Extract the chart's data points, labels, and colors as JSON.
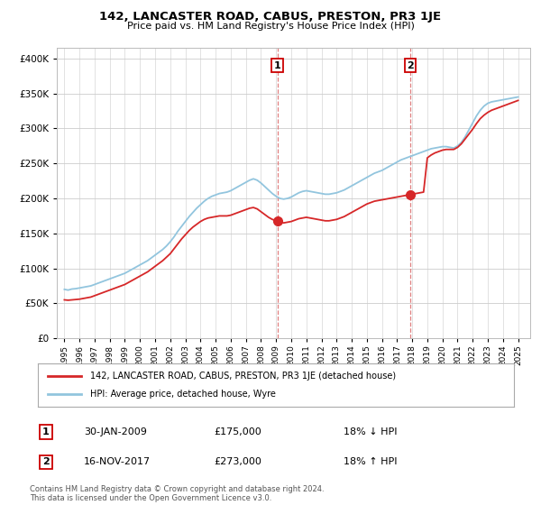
{
  "title": "142, LANCASTER ROAD, CABUS, PRESTON, PR3 1JE",
  "subtitle": "Price paid vs. HM Land Registry's House Price Index (HPI)",
  "ytick_vals": [
    0,
    50000,
    100000,
    150000,
    200000,
    250000,
    300000,
    350000,
    400000
  ],
  "ylim": [
    0,
    415000
  ],
  "xlim_start": 1994.5,
  "xlim_end": 2025.8,
  "hpi_color": "#92c5de",
  "price_color": "#d62728",
  "vline_color": "#e08080",
  "marker1_year": 2009.08,
  "marker2_year": 2017.89,
  "legend_label_property": "142, LANCASTER ROAD, CABUS, PRESTON, PR3 1JE (detached house)",
  "legend_label_hpi": "HPI: Average price, detached house, Wyre",
  "annotation1": [
    "1",
    "30-JAN-2009",
    "£175,000",
    "18% ↓ HPI"
  ],
  "annotation2": [
    "2",
    "16-NOV-2017",
    "£273,000",
    "18% ↑ HPI"
  ],
  "footer": "Contains HM Land Registry data © Crown copyright and database right 2024.\nThis data is licensed under the Open Government Licence v3.0.",
  "background_color": "#ffffff",
  "grid_color": "#cccccc",
  "hpi_years": [
    1995.0,
    1995.25,
    1995.5,
    1995.75,
    1996.0,
    1996.25,
    1996.5,
    1996.75,
    1997.0,
    1997.25,
    1997.5,
    1997.75,
    1998.0,
    1998.25,
    1998.5,
    1998.75,
    1999.0,
    1999.25,
    1999.5,
    1999.75,
    2000.0,
    2000.25,
    2000.5,
    2000.75,
    2001.0,
    2001.25,
    2001.5,
    2001.75,
    2002.0,
    2002.25,
    2002.5,
    2002.75,
    2003.0,
    2003.25,
    2003.5,
    2003.75,
    2004.0,
    2004.25,
    2004.5,
    2004.75,
    2005.0,
    2005.25,
    2005.5,
    2005.75,
    2006.0,
    2006.25,
    2006.5,
    2006.75,
    2007.0,
    2007.25,
    2007.5,
    2007.75,
    2008.0,
    2008.25,
    2008.5,
    2008.75,
    2009.0,
    2009.25,
    2009.5,
    2009.75,
    2010.0,
    2010.25,
    2010.5,
    2010.75,
    2011.0,
    2011.25,
    2011.5,
    2011.75,
    2012.0,
    2012.25,
    2012.5,
    2012.75,
    2013.0,
    2013.25,
    2013.5,
    2013.75,
    2014.0,
    2014.25,
    2014.5,
    2014.75,
    2015.0,
    2015.25,
    2015.5,
    2015.75,
    2016.0,
    2016.25,
    2016.5,
    2016.75,
    2017.0,
    2017.25,
    2017.5,
    2017.75,
    2018.0,
    2018.25,
    2018.5,
    2018.75,
    2019.0,
    2019.25,
    2019.5,
    2019.75,
    2020.0,
    2020.25,
    2020.5,
    2020.75,
    2021.0,
    2021.25,
    2021.5,
    2021.75,
    2022.0,
    2022.25,
    2022.5,
    2022.75,
    2023.0,
    2023.25,
    2023.5,
    2023.75,
    2024.0,
    2024.25,
    2024.5,
    2024.75,
    2025.0
  ],
  "hpi_values": [
    70000,
    69000,
    70500,
    71000,
    72000,
    73000,
    74000,
    75000,
    77000,
    79000,
    81000,
    83000,
    85000,
    87000,
    89000,
    91000,
    93000,
    96000,
    99000,
    102000,
    105000,
    108000,
    111000,
    115000,
    119000,
    123000,
    127000,
    132000,
    138000,
    145000,
    153000,
    160000,
    167000,
    174000,
    180000,
    186000,
    191000,
    196000,
    200000,
    203000,
    205000,
    207000,
    208000,
    209000,
    211000,
    214000,
    217000,
    220000,
    223000,
    226000,
    228000,
    226000,
    222000,
    217000,
    212000,
    207000,
    203000,
    200000,
    199000,
    200000,
    202000,
    205000,
    208000,
    210000,
    211000,
    210000,
    209000,
    208000,
    207000,
    206000,
    206000,
    207000,
    208000,
    210000,
    212000,
    215000,
    218000,
    221000,
    224000,
    227000,
    230000,
    233000,
    236000,
    238000,
    240000,
    243000,
    246000,
    249000,
    252000,
    255000,
    257000,
    259000,
    261000,
    263000,
    265000,
    267000,
    269000,
    271000,
    272000,
    273000,
    274000,
    274000,
    273000,
    272000,
    275000,
    280000,
    288000,
    298000,
    308000,
    318000,
    326000,
    332000,
    336000,
    338000,
    339000,
    340000,
    341000,
    342000,
    343000,
    344000,
    345000
  ],
  "price_years": [
    1995.0,
    1995.25,
    1995.5,
    1995.75,
    1996.0,
    1996.25,
    1996.5,
    1996.75,
    1997.0,
    1997.25,
    1997.5,
    1997.75,
    1998.0,
    1998.25,
    1998.5,
    1998.75,
    1999.0,
    1999.25,
    1999.5,
    1999.75,
    2000.0,
    2000.25,
    2000.5,
    2000.75,
    2001.0,
    2001.25,
    2001.5,
    2001.75,
    2002.0,
    2002.25,
    2002.5,
    2002.75,
    2003.0,
    2003.25,
    2003.5,
    2003.75,
    2004.0,
    2004.25,
    2004.5,
    2004.75,
    2005.0,
    2005.25,
    2005.5,
    2005.75,
    2006.0,
    2006.25,
    2006.5,
    2006.75,
    2007.0,
    2007.25,
    2007.5,
    2007.75,
    2008.0,
    2008.25,
    2008.5,
    2008.75,
    2009.0,
    2009.25,
    2009.5,
    2009.75,
    2010.0,
    2010.25,
    2010.5,
    2010.75,
    2011.0,
    2011.25,
    2011.5,
    2011.75,
    2012.0,
    2012.25,
    2012.5,
    2012.75,
    2013.0,
    2013.25,
    2013.5,
    2013.75,
    2014.0,
    2014.25,
    2014.5,
    2014.75,
    2015.0,
    2015.25,
    2015.5,
    2015.75,
    2016.0,
    2016.25,
    2016.5,
    2016.75,
    2017.0,
    2017.25,
    2017.5,
    2017.75,
    2018.0,
    2018.25,
    2018.5,
    2018.75,
    2019.0,
    2019.25,
    2019.5,
    2019.75,
    2020.0,
    2020.25,
    2020.5,
    2020.75,
    2021.0,
    2021.25,
    2021.5,
    2021.75,
    2022.0,
    2022.25,
    2022.5,
    2022.75,
    2023.0,
    2023.25,
    2023.5,
    2023.75,
    2024.0,
    2024.25,
    2024.5,
    2024.75,
    2025.0
  ],
  "price_values": [
    55000,
    54500,
    55000,
    55500,
    56000,
    57000,
    58000,
    59000,
    61000,
    63000,
    65000,
    67000,
    69000,
    71000,
    73000,
    75000,
    77000,
    80000,
    83000,
    86000,
    89000,
    92000,
    95000,
    99000,
    103000,
    107000,
    111000,
    116000,
    121000,
    128000,
    135000,
    142000,
    148000,
    154000,
    159000,
    163000,
    167000,
    170000,
    172000,
    173000,
    174000,
    175000,
    175000,
    175000,
    176000,
    178000,
    180000,
    182000,
    184000,
    186000,
    187000,
    185000,
    181000,
    177000,
    173000,
    170000,
    168000,
    166000,
    165000,
    166000,
    167000,
    169000,
    171000,
    172000,
    173000,
    172000,
    171000,
    170000,
    169000,
    168000,
    168000,
    169000,
    170000,
    172000,
    174000,
    177000,
    180000,
    183000,
    186000,
    189000,
    192000,
    194000,
    196000,
    197000,
    198000,
    199000,
    200000,
    201000,
    202000,
    203000,
    204000,
    205000,
    206000,
    207000,
    208000,
    209000,
    258000,
    262000,
    265000,
    267000,
    269000,
    270000,
    270000,
    270000,
    273000,
    278000,
    285000,
    292000,
    299000,
    307000,
    314000,
    319000,
    323000,
    326000,
    328000,
    330000,
    332000,
    334000,
    336000,
    338000,
    340000
  ]
}
